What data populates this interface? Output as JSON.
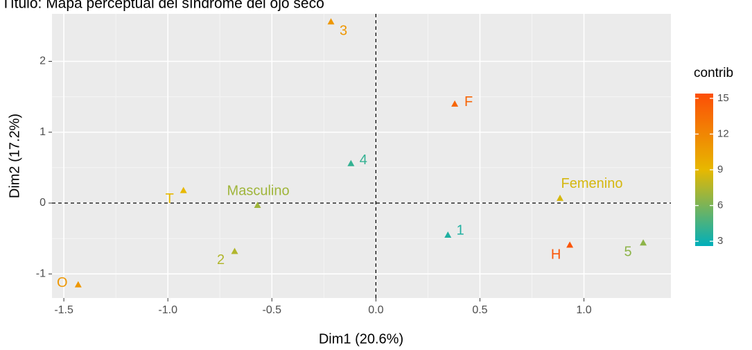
{
  "chart_data": {
    "type": "scatter",
    "title": "Título: Mapa perceptual del síndrome del ojo seco",
    "xlabel": "Dim1 (20.6%)",
    "ylabel": "Dim2 (17.2%)",
    "labels": [
      "3",
      "F",
      "4",
      "T",
      "Masculino",
      "Femenino",
      "1",
      "H",
      "5",
      "2",
      "O"
    ],
    "x": [
      -0.216,
      0.379,
      -0.12,
      -0.925,
      -0.569,
      0.885,
      0.346,
      0.932,
      1.285,
      -0.679,
      -1.431
    ],
    "values": [
      2.56,
      1.4,
      0.56,
      0.18,
      -0.03,
      0.07,
      -0.45,
      -0.59,
      -0.56,
      -0.68,
      -1.15
    ],
    "contrib": [
      11,
      14,
      4,
      9,
      7,
      8.5,
      3.5,
      15,
      6.5,
      7.5,
      11
    ],
    "xlim": [
      -1.557,
      1.418
    ],
    "ylim": [
      -1.34,
      2.67
    ],
    "xticks": [
      -1.5,
      {
        "value": -1.0,
        "label": "-1.0"
      },
      -0.5,
      {
        "value": 0,
        "label": "0.0"
      },
      0.5,
      {
        "value": 1.0,
        "label": "1.0"
      }
    ],
    "yticks": [
      -1,
      0,
      1,
      2
    ],
    "grid": true,
    "legend": {
      "title": "contrib",
      "position": "right",
      "colorlim": [
        2.6,
        15.4
      ],
      "ticks": [
        3,
        6,
        9,
        12,
        15
      ],
      "colors": [
        "#00AFBB",
        "#E7B800",
        "#FC4E07"
      ]
    }
  }
}
